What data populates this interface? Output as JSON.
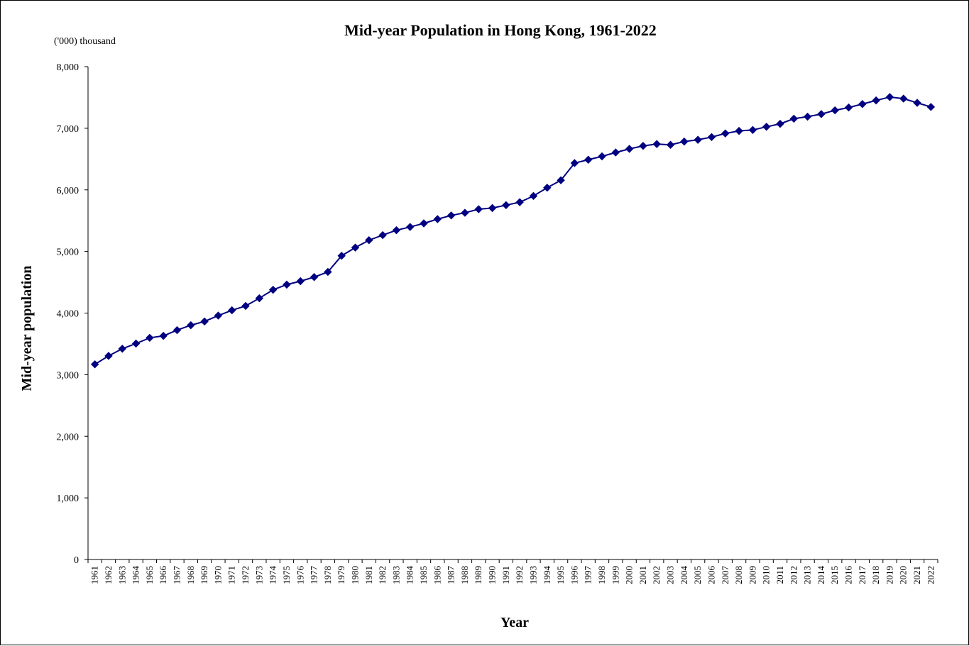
{
  "chart_data": {
    "type": "line",
    "title": "Mid-year Population in Hong Kong, 1961-2022",
    "unit_note": "('000) thousand",
    "xlabel": "Year",
    "ylabel": "Mid-year population",
    "ylim": [
      0,
      8000
    ],
    "yticks": [
      "0",
      "1,000",
      "2,000",
      "3,000",
      "4,000",
      "5,000",
      "6,000",
      "7,000",
      "8,000"
    ],
    "grid": false,
    "marker": "diamond",
    "color": "#000080",
    "categories": [
      "1961",
      "1962",
      "1963",
      "1964",
      "1965",
      "1966",
      "1967",
      "1968",
      "1969",
      "1970",
      "1971",
      "1972",
      "1973",
      "1974",
      "1975",
      "1976",
      "1977",
      "1978",
      "1979",
      "1980",
      "1981",
      "1982",
      "1983",
      "1984",
      "1985",
      "1986",
      "1987",
      "1988",
      "1989",
      "1990",
      "1991",
      "1992",
      "1993",
      "1994",
      "1995",
      "1996",
      "1997",
      "1998",
      "1999",
      "2000",
      "2001",
      "2002",
      "2003",
      "2004",
      "2005",
      "2006",
      "2007",
      "2008",
      "2009",
      "2010",
      "2011",
      "2012",
      "2013",
      "2014",
      "2015",
      "2016",
      "2017",
      "2018",
      "2019",
      "2020",
      "2021",
      "2022"
    ],
    "values": [
      3168,
      3305,
      3421,
      3505,
      3598,
      3630,
      3723,
      3803,
      3864,
      3959,
      4045,
      4116,
      4241,
      4378,
      4462,
      4518,
      4584,
      4668,
      4930,
      5063,
      5183,
      5265,
      5345,
      5398,
      5456,
      5525,
      5585,
      5628,
      5686,
      5705,
      5752,
      5800,
      5901,
      6035,
      6156,
      6435,
      6489,
      6544,
      6607,
      6665,
      6714,
      6744,
      6731,
      6784,
      6813,
      6857,
      6916,
      6957,
      6972,
      7024,
      7072,
      7155,
      7188,
      7230,
      7291,
      7337,
      7393,
      7452,
      7507,
      7481,
      7413,
      7346
    ]
  }
}
